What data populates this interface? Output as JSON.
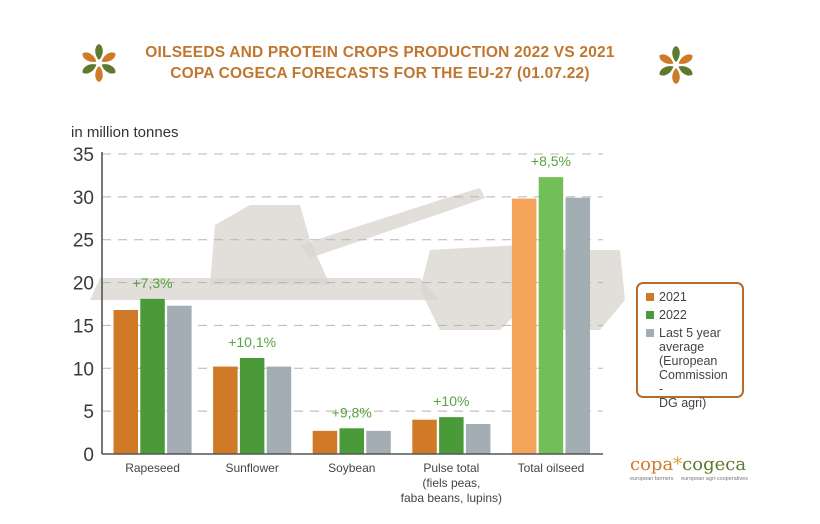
{
  "title": {
    "line1": "OILSEEDS AND PROTEIN CROPS PRODUCTION 2022 VS 2021",
    "line2": "COPA COGECA FORECASTS FOR THE EU-27 (01.07.22)"
  },
  "colors": {
    "title": "#c0762e",
    "y2021": "#d07a28",
    "y2022": "#4a9a3a",
    "avg": "#a3adb4",
    "y2021_total": "#f5a55a",
    "y2022_total": "#72bf58",
    "change_label": "#5aa13f",
    "logo_orange": "#d07a28",
    "logo_green": "#5d7a2e"
  },
  "chart_data": {
    "type": "bar",
    "title": "OILSEEDS AND PROTEIN CROPS PRODUCTION 2022 VS 2021",
    "ylabel": "in million tonnes",
    "xlabel": "",
    "ylim": [
      0,
      35
    ],
    "yticks": [
      "0",
      "5",
      "10",
      "15",
      "20",
      "25",
      "30",
      "35"
    ],
    "grid": true,
    "legend_position": "right",
    "categories": [
      [
        "Rapeseed"
      ],
      [
        "Sunflower"
      ],
      [
        "Soybean"
      ],
      [
        "Pulse total",
        "(fiels peas,",
        "faba beans, lupins)"
      ],
      [
        "Total oilseed"
      ]
    ],
    "series": [
      {
        "name": "2021",
        "values": [
          16.8,
          10.2,
          2.7,
          4.0,
          29.8
        ]
      },
      {
        "name": "2022",
        "values": [
          18.1,
          11.2,
          3.0,
          4.3,
          32.3
        ]
      },
      {
        "name": "Last 5 year average (European Commission - DG agri)",
        "values": [
          17.3,
          10.2,
          2.7,
          3.5,
          29.9
        ]
      }
    ],
    "annotations": [
      "+7,3%",
      "+10,1%",
      "+9,8%",
      "+10%",
      "+8,5%"
    ]
  },
  "legend": {
    "items": [
      {
        "label": "2021"
      },
      {
        "label": "2022"
      },
      {
        "label_lines": [
          "Last 5 year",
          "average",
          "(European",
          "Commission -",
          "DG agri)"
        ]
      }
    ]
  },
  "logo": {
    "copa": "copa",
    "star": "*",
    "cogeca": "cogeca",
    "sub_left": "european farmers",
    "sub_right": "european agri-cooperatives"
  }
}
